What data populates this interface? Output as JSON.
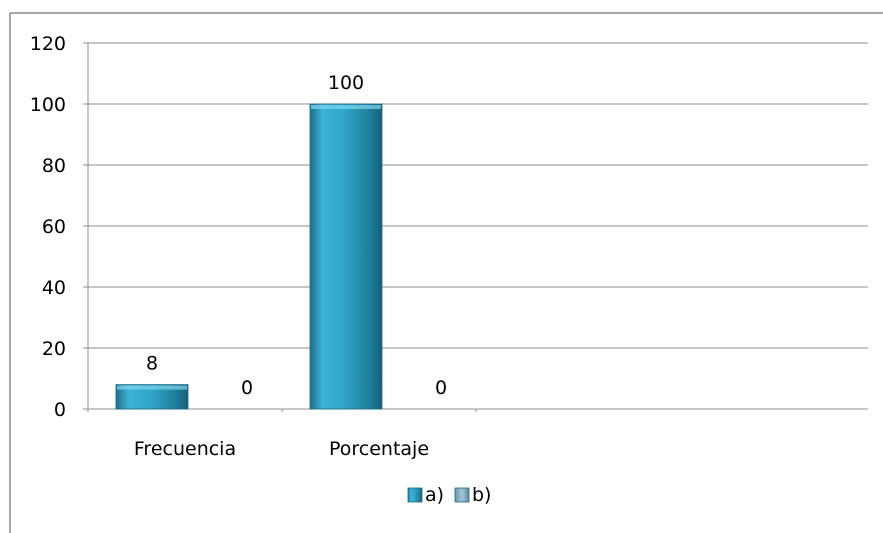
{
  "chart_data": {
    "type": "bar",
    "title": "",
    "xlabel": "",
    "ylabel": "",
    "categories": [
      "Frecuencia",
      "Porcentaje"
    ],
    "series": [
      {
        "name": "a)",
        "values": [
          8,
          100
        ],
        "color": "#2f9fc0"
      },
      {
        "name": "b)",
        "values": [
          0,
          0
        ],
        "color": "#8fb8c8"
      }
    ],
    "ylim": [
      0,
      120
    ],
    "yticks": [
      "0",
      "20",
      "40",
      "60",
      "80",
      "100",
      "120"
    ],
    "data_labels": [
      [
        "8",
        "100"
      ],
      [
        "0",
        "0"
      ]
    ],
    "grid": true,
    "legend_position": "bottom"
  }
}
